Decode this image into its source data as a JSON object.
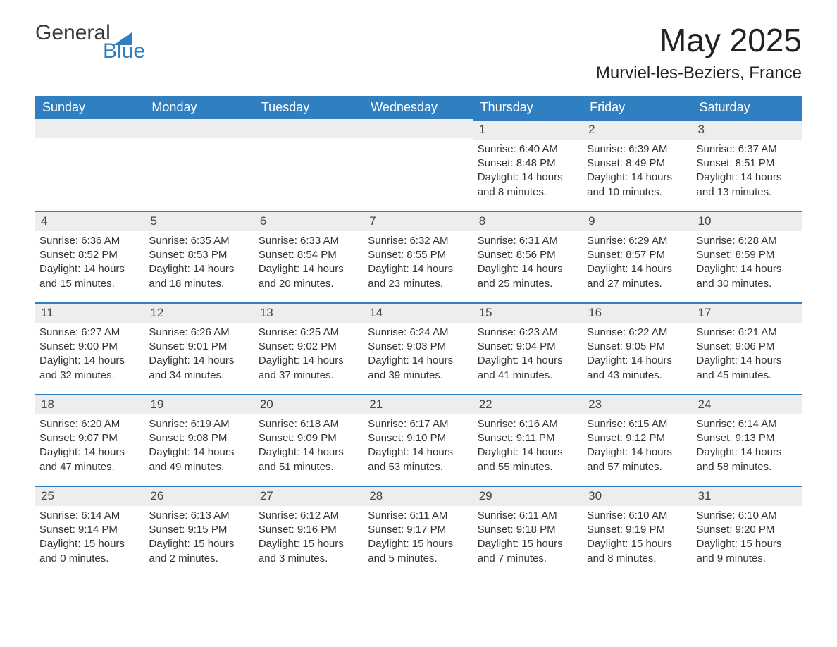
{
  "logo": {
    "text1": "General",
    "text2": "Blue",
    "flag_color": "#2f7fc1"
  },
  "title": "May 2025",
  "location": "Murviel-les-Beziers, France",
  "colors": {
    "header_bg": "#2f7fc1",
    "header_text": "#ffffff",
    "daynum_bg": "#ededed",
    "daynum_border": "#2f7fc1",
    "body_text": "#333333",
    "background": "#ffffff"
  },
  "fonts": {
    "title_size_pt": 34,
    "location_size_pt": 18,
    "header_size_pt": 14,
    "body_size_pt": 11
  },
  "day_headers": [
    "Sunday",
    "Monday",
    "Tuesday",
    "Wednesday",
    "Thursday",
    "Friday",
    "Saturday"
  ],
  "weeks": [
    [
      {
        "empty": true
      },
      {
        "empty": true
      },
      {
        "empty": true
      },
      {
        "empty": true
      },
      {
        "n": "1",
        "sunrise": "6:40 AM",
        "sunset": "8:48 PM",
        "daylight": "14 hours and 8 minutes."
      },
      {
        "n": "2",
        "sunrise": "6:39 AM",
        "sunset": "8:49 PM",
        "daylight": "14 hours and 10 minutes."
      },
      {
        "n": "3",
        "sunrise": "6:37 AM",
        "sunset": "8:51 PM",
        "daylight": "14 hours and 13 minutes."
      }
    ],
    [
      {
        "n": "4",
        "sunrise": "6:36 AM",
        "sunset": "8:52 PM",
        "daylight": "14 hours and 15 minutes."
      },
      {
        "n": "5",
        "sunrise": "6:35 AM",
        "sunset": "8:53 PM",
        "daylight": "14 hours and 18 minutes."
      },
      {
        "n": "6",
        "sunrise": "6:33 AM",
        "sunset": "8:54 PM",
        "daylight": "14 hours and 20 minutes."
      },
      {
        "n": "7",
        "sunrise": "6:32 AM",
        "sunset": "8:55 PM",
        "daylight": "14 hours and 23 minutes."
      },
      {
        "n": "8",
        "sunrise": "6:31 AM",
        "sunset": "8:56 PM",
        "daylight": "14 hours and 25 minutes."
      },
      {
        "n": "9",
        "sunrise": "6:29 AM",
        "sunset": "8:57 PM",
        "daylight": "14 hours and 27 minutes."
      },
      {
        "n": "10",
        "sunrise": "6:28 AM",
        "sunset": "8:59 PM",
        "daylight": "14 hours and 30 minutes."
      }
    ],
    [
      {
        "n": "11",
        "sunrise": "6:27 AM",
        "sunset": "9:00 PM",
        "daylight": "14 hours and 32 minutes."
      },
      {
        "n": "12",
        "sunrise": "6:26 AM",
        "sunset": "9:01 PM",
        "daylight": "14 hours and 34 minutes."
      },
      {
        "n": "13",
        "sunrise": "6:25 AM",
        "sunset": "9:02 PM",
        "daylight": "14 hours and 37 minutes."
      },
      {
        "n": "14",
        "sunrise": "6:24 AM",
        "sunset": "9:03 PM",
        "daylight": "14 hours and 39 minutes."
      },
      {
        "n": "15",
        "sunrise": "6:23 AM",
        "sunset": "9:04 PM",
        "daylight": "14 hours and 41 minutes."
      },
      {
        "n": "16",
        "sunrise": "6:22 AM",
        "sunset": "9:05 PM",
        "daylight": "14 hours and 43 minutes."
      },
      {
        "n": "17",
        "sunrise": "6:21 AM",
        "sunset": "9:06 PM",
        "daylight": "14 hours and 45 minutes."
      }
    ],
    [
      {
        "n": "18",
        "sunrise": "6:20 AM",
        "sunset": "9:07 PM",
        "daylight": "14 hours and 47 minutes."
      },
      {
        "n": "19",
        "sunrise": "6:19 AM",
        "sunset": "9:08 PM",
        "daylight": "14 hours and 49 minutes."
      },
      {
        "n": "20",
        "sunrise": "6:18 AM",
        "sunset": "9:09 PM",
        "daylight": "14 hours and 51 minutes."
      },
      {
        "n": "21",
        "sunrise": "6:17 AM",
        "sunset": "9:10 PM",
        "daylight": "14 hours and 53 minutes."
      },
      {
        "n": "22",
        "sunrise": "6:16 AM",
        "sunset": "9:11 PM",
        "daylight": "14 hours and 55 minutes."
      },
      {
        "n": "23",
        "sunrise": "6:15 AM",
        "sunset": "9:12 PM",
        "daylight": "14 hours and 57 minutes."
      },
      {
        "n": "24",
        "sunrise": "6:14 AM",
        "sunset": "9:13 PM",
        "daylight": "14 hours and 58 minutes."
      }
    ],
    [
      {
        "n": "25",
        "sunrise": "6:14 AM",
        "sunset": "9:14 PM",
        "daylight": "15 hours and 0 minutes."
      },
      {
        "n": "26",
        "sunrise": "6:13 AM",
        "sunset": "9:15 PM",
        "daylight": "15 hours and 2 minutes."
      },
      {
        "n": "27",
        "sunrise": "6:12 AM",
        "sunset": "9:16 PM",
        "daylight": "15 hours and 3 minutes."
      },
      {
        "n": "28",
        "sunrise": "6:11 AM",
        "sunset": "9:17 PM",
        "daylight": "15 hours and 5 minutes."
      },
      {
        "n": "29",
        "sunrise": "6:11 AM",
        "sunset": "9:18 PM",
        "daylight": "15 hours and 7 minutes."
      },
      {
        "n": "30",
        "sunrise": "6:10 AM",
        "sunset": "9:19 PM",
        "daylight": "15 hours and 8 minutes."
      },
      {
        "n": "31",
        "sunrise": "6:10 AM",
        "sunset": "9:20 PM",
        "daylight": "15 hours and 9 minutes."
      }
    ]
  ],
  "labels": {
    "sunrise": "Sunrise: ",
    "sunset": "Sunset: ",
    "daylight": "Daylight: "
  }
}
